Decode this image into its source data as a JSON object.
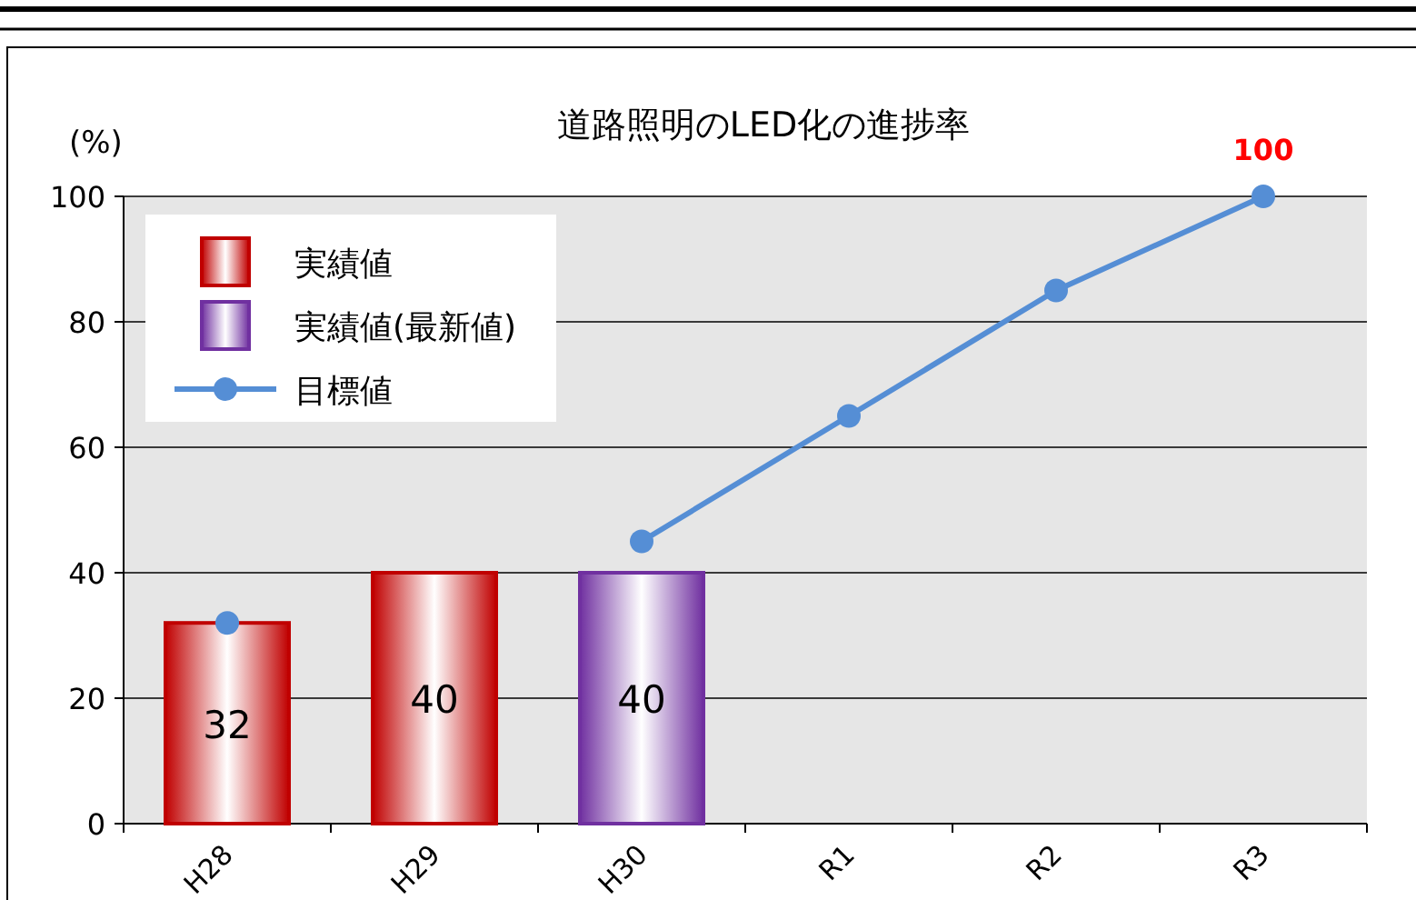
{
  "chart_data": {
    "type": "bar",
    "title": "道路照明のLED化の進捗率",
    "ylabel": "(%)",
    "categories": [
      "H28",
      "H29",
      "H30",
      "R1",
      "R2",
      "R3"
    ],
    "series": [
      {
        "name": "実績値",
        "color": "#c00000",
        "values": [
          32,
          40,
          null,
          null,
          null,
          null
        ],
        "value_labels": [
          "32",
          "40",
          null,
          null,
          null,
          null
        ]
      },
      {
        "name": "実績値(最新値)",
        "color": "#7030a0",
        "values": [
          null,
          null,
          40,
          null,
          null,
          null
        ],
        "value_labels": [
          null,
          null,
          "40",
          null,
          null,
          null
        ]
      },
      {
        "name": "目標値",
        "type": "line",
        "color": "#558ed5",
        "values": [
          32,
          null,
          45,
          65,
          85,
          100
        ],
        "marker": "circle"
      }
    ],
    "stacked": true,
    "ylim": [
      0,
      100
    ],
    "yticks": [
      0,
      20,
      40,
      60,
      80,
      100
    ],
    "grid": "y",
    "legend": "top left",
    "annotations": [
      {
        "text": "100",
        "x": "R3",
        "y": 100
      }
    ]
  }
}
